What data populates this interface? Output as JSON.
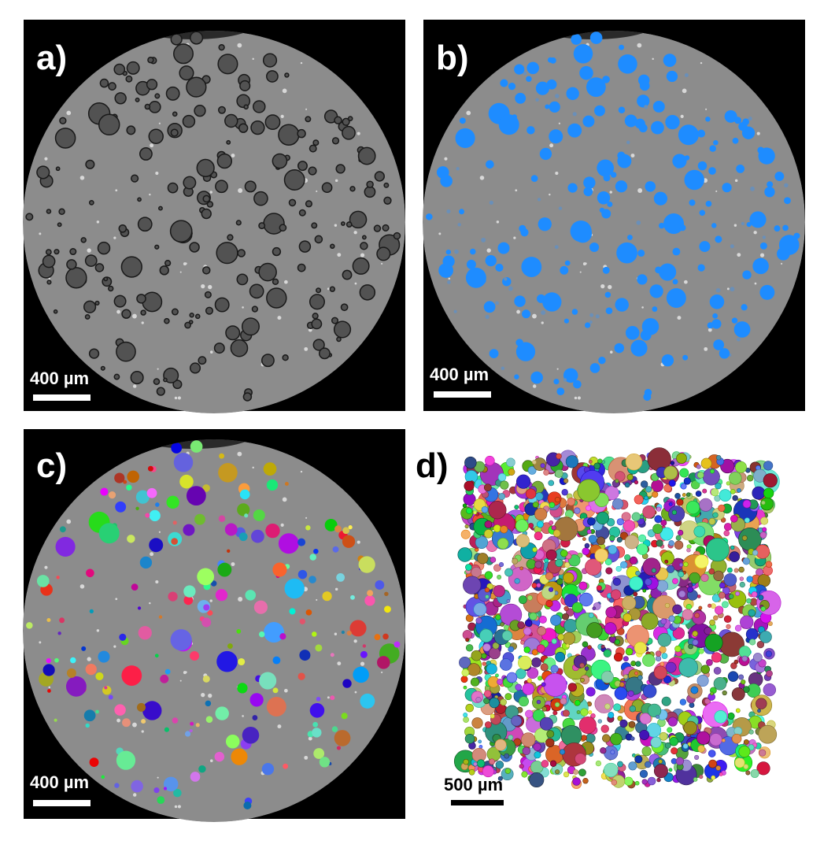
{
  "panels": [
    {
      "label": "a)",
      "scale_bar": "400 µm"
    },
    {
      "label": "b)",
      "scale_bar": "400 µm"
    },
    {
      "label": "c)",
      "scale_bar": "400 µm"
    },
    {
      "label": "d)",
      "scale_bar": "500 µm"
    }
  ]
}
